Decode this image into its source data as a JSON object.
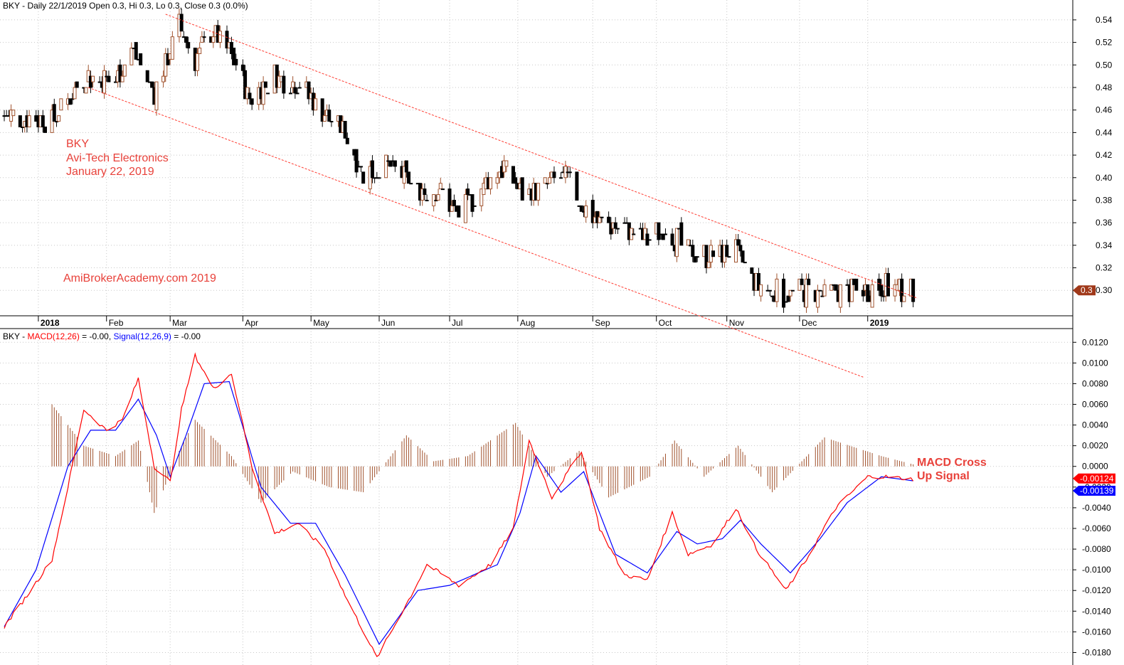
{
  "header": {
    "price": "BKY - Daily 22/1/2019 Open 0.3, Hi 0.3, Lo 0.3, Close 0.3 (0.0%)",
    "macd_prefix": "BKY - ",
    "macd_name": "MACD(12,26)",
    "macd_value": " = -0.00, ",
    "signal_name": "Signal(12,26,9)",
    "signal_value": " = -0.00"
  },
  "annotations": {
    "ticker": "BKY",
    "company": "Avi-Tech Electronics",
    "date": "January 22, 2019",
    "site": "AmiBrokerAcademy.com  2019",
    "macd_cross_line1": "MACD Cross",
    "macd_cross_line2": "Up Signal"
  },
  "colors": {
    "up_candle": "#a0522d",
    "down_candle": "#000000",
    "macd_line": "#ff0000",
    "signal_line": "#0000ff",
    "histogram": "#a0522d",
    "trendline": "#ff3b30",
    "annotation": "#e8413a",
    "grid": "#c8c8c8"
  },
  "chart_data": [
    {
      "type": "candlestick",
      "title": "BKY - Daily 22/1/2019 Open 0.3, Hi 0.3, Lo 0.3, Close 0.3 (0.0%)",
      "ylim": [
        0.285,
        0.545
      ],
      "y_ticks": [
        "0.54",
        "0.52",
        "0.50",
        "0.48",
        "0.46",
        "0.44",
        "0.42",
        "0.40",
        "0.38",
        "0.36",
        "0.34",
        "0.32",
        "0.30"
      ],
      "x_ticks": [
        {
          "label": "2018",
          "date": "2018-01-02",
          "bold": true
        },
        {
          "label": "Feb",
          "date": "2018-02-01"
        },
        {
          "label": "Mar",
          "date": "2018-03-01"
        },
        {
          "label": "Apr",
          "date": "2018-04-02"
        },
        {
          "label": "May",
          "date": "2018-05-02"
        },
        {
          "label": "Jun",
          "date": "2018-06-01"
        },
        {
          "label": "Jul",
          "date": "2018-07-02"
        },
        {
          "label": "Aug",
          "date": "2018-08-01"
        },
        {
          "label": "Sep",
          "date": "2018-09-03"
        },
        {
          "label": "Oct",
          "date": "2018-10-01"
        },
        {
          "label": "Nov",
          "date": "2018-11-01"
        },
        {
          "label": "Dec",
          "date": "2018-12-03"
        },
        {
          "label": "2019",
          "date": "2019-01-02",
          "bold": true
        }
      ],
      "last_close_label": "0.3",
      "closes": [
        {
          "date": "2017-12-18",
          "close": 0.455
        },
        {
          "date": "2018-01-08",
          "close": 0.45
        },
        {
          "date": "2018-01-22",
          "close": 0.49
        },
        {
          "date": "2018-02-05",
          "close": 0.485
        },
        {
          "date": "2018-02-12",
          "close": 0.515
        },
        {
          "date": "2018-02-22",
          "close": 0.475
        },
        {
          "date": "2018-03-05",
          "close": 0.535
        },
        {
          "date": "2018-03-12",
          "close": 0.505
        },
        {
          "date": "2018-03-20",
          "close": 0.53
        },
        {
          "date": "2018-03-29",
          "close": 0.505
        },
        {
          "date": "2018-04-05",
          "close": 0.47
        },
        {
          "date": "2018-04-16",
          "close": 0.49
        },
        {
          "date": "2018-04-26",
          "close": 0.485
        },
        {
          "date": "2018-05-08",
          "close": 0.455
        },
        {
          "date": "2018-05-17",
          "close": 0.44
        },
        {
          "date": "2018-05-25",
          "close": 0.405
        },
        {
          "date": "2018-06-05",
          "close": 0.41
        },
        {
          "date": "2018-06-18",
          "close": 0.39
        },
        {
          "date": "2018-06-28",
          "close": 0.39
        },
        {
          "date": "2018-07-06",
          "close": 0.365
        },
        {
          "date": "2018-07-16",
          "close": 0.39
        },
        {
          "date": "2018-07-26",
          "close": 0.41
        },
        {
          "date": "2018-08-03",
          "close": 0.385
        },
        {
          "date": "2018-08-15",
          "close": 0.395
        },
        {
          "date": "2018-08-22",
          "close": 0.4
        },
        {
          "date": "2018-08-30",
          "close": 0.375
        },
        {
          "date": "2018-09-06",
          "close": 0.36
        },
        {
          "date": "2018-09-17",
          "close": 0.355
        },
        {
          "date": "2018-09-27",
          "close": 0.345
        },
        {
          "date": "2018-10-05",
          "close": 0.355
        },
        {
          "date": "2018-10-15",
          "close": 0.335
        },
        {
          "date": "2018-10-25",
          "close": 0.33
        },
        {
          "date": "2018-11-05",
          "close": 0.335
        },
        {
          "date": "2018-11-14",
          "close": 0.305
        },
        {
          "date": "2018-11-26",
          "close": 0.295
        },
        {
          "date": "2018-12-06",
          "close": 0.3
        },
        {
          "date": "2018-12-14",
          "close": 0.295
        },
        {
          "date": "2018-12-21",
          "close": 0.3
        },
        {
          "date": "2019-01-02",
          "close": 0.3
        },
        {
          "date": "2019-01-08",
          "close": 0.305
        },
        {
          "date": "2019-01-15",
          "close": 0.3
        },
        {
          "date": "2019-01-22",
          "close": 0.3
        }
      ],
      "trendlines": [
        {
          "name": "upper",
          "from": {
            "date": "2018-02-27",
            "value": 0.545
          },
          "to": {
            "date": "2019-01-24",
            "value": 0.293
          }
        },
        {
          "name": "lower",
          "from": {
            "date": "2018-01-24",
            "value": 0.48
          },
          "to": {
            "date": "2018-12-31",
            "value": 0.223
          }
        }
      ]
    },
    {
      "type": "line",
      "title": "BKY - MACD(12,26) = -0.00, Signal(12,26,9) = -0.00",
      "ylim": [
        -0.019,
        0.0125
      ],
      "y_ticks": [
        "0.0120",
        "0.0100",
        "0.0080",
        "0.0060",
        "0.0040",
        "0.0020",
        "0.0000",
        "-0.0020",
        "-0.0040",
        "-0.0060",
        "-0.0080",
        "-0.0100",
        "-0.0120",
        "-0.0140",
        "-0.0160",
        "-0.0180"
      ],
      "value_labels": {
        "macd": "-0.00124",
        "signal": "-0.00139"
      },
      "series": [
        {
          "name": "MACD(12,26)",
          "values": [
            {
              "date": "2017-12-18",
              "value": -0.0155
            },
            {
              "date": "2017-12-28",
              "value": -0.0125
            },
            {
              "date": "2018-01-08",
              "value": -0.009
            },
            {
              "date": "2018-01-15",
              "value": -0.002
            },
            {
              "date": "2018-01-22",
              "value": 0.0055
            },
            {
              "date": "2018-02-01",
              "value": 0.0035
            },
            {
              "date": "2018-02-08",
              "value": 0.0045
            },
            {
              "date": "2018-02-15",
              "value": 0.0085
            },
            {
              "date": "2018-02-22",
              "value": 0.0
            },
            {
              "date": "2018-03-01",
              "value": -0.0015
            },
            {
              "date": "2018-03-06",
              "value": 0.0055
            },
            {
              "date": "2018-03-12",
              "value": 0.0107
            },
            {
              "date": "2018-03-20",
              "value": 0.0075
            },
            {
              "date": "2018-03-28",
              "value": 0.009
            },
            {
              "date": "2018-04-06",
              "value": 0.0
            },
            {
              "date": "2018-04-16",
              "value": -0.0065
            },
            {
              "date": "2018-04-26",
              "value": -0.0055
            },
            {
              "date": "2018-05-08",
              "value": -0.008
            },
            {
              "date": "2018-05-17",
              "value": -0.0125
            },
            {
              "date": "2018-05-31",
              "value": -0.0185
            },
            {
              "date": "2018-06-15",
              "value": -0.0125
            },
            {
              "date": "2018-06-22",
              "value": -0.0095
            },
            {
              "date": "2018-07-06",
              "value": -0.0115
            },
            {
              "date": "2018-07-20",
              "value": -0.0095
            },
            {
              "date": "2018-07-30",
              "value": -0.006
            },
            {
              "date": "2018-08-06",
              "value": 0.0025
            },
            {
              "date": "2018-08-16",
              "value": -0.003
            },
            {
              "date": "2018-08-29",
              "value": 0.0015
            },
            {
              "date": "2018-09-06",
              "value": -0.006
            },
            {
              "date": "2018-09-17",
              "value": -0.0105
            },
            {
              "date": "2018-09-27",
              "value": -0.011
            },
            {
              "date": "2018-10-08",
              "value": -0.0045
            },
            {
              "date": "2018-10-15",
              "value": -0.0085
            },
            {
              "date": "2018-10-26",
              "value": -0.0075
            },
            {
              "date": "2018-11-05",
              "value": -0.004
            },
            {
              "date": "2018-11-14",
              "value": -0.008
            },
            {
              "date": "2018-11-27",
              "value": -0.012
            },
            {
              "date": "2018-12-06",
              "value": -0.009
            },
            {
              "date": "2018-12-19",
              "value": -0.004
            },
            {
              "date": "2019-01-02",
              "value": -0.001
            },
            {
              "date": "2019-01-10",
              "value": -0.001
            },
            {
              "date": "2019-01-22",
              "value": -0.00124
            }
          ]
        },
        {
          "name": "Signal(12,26,9)",
          "values": [
            {
              "date": "2017-12-18",
              "value": -0.0155
            },
            {
              "date": "2018-01-01",
              "value": -0.01
            },
            {
              "date": "2018-01-15",
              "value": 0.0
            },
            {
              "date": "2018-01-25",
              "value": 0.0035
            },
            {
              "date": "2018-02-05",
              "value": 0.0035
            },
            {
              "date": "2018-02-15",
              "value": 0.0065
            },
            {
              "date": "2018-02-23",
              "value": 0.003
            },
            {
              "date": "2018-03-01",
              "value": -0.001
            },
            {
              "date": "2018-03-08",
              "value": 0.003
            },
            {
              "date": "2018-03-16",
              "value": 0.008
            },
            {
              "date": "2018-03-27",
              "value": 0.0082
            },
            {
              "date": "2018-04-10",
              "value": -0.002
            },
            {
              "date": "2018-04-23",
              "value": -0.0055
            },
            {
              "date": "2018-05-04",
              "value": -0.0055
            },
            {
              "date": "2018-05-17",
              "value": -0.0105
            },
            {
              "date": "2018-06-01",
              "value": -0.0172
            },
            {
              "date": "2018-06-18",
              "value": -0.012
            },
            {
              "date": "2018-07-02",
              "value": -0.0115
            },
            {
              "date": "2018-07-23",
              "value": -0.0095
            },
            {
              "date": "2018-08-02",
              "value": -0.0045
            },
            {
              "date": "2018-08-09",
              "value": 0.001
            },
            {
              "date": "2018-08-20",
              "value": -0.0025
            },
            {
              "date": "2018-08-30",
              "value": -0.0005
            },
            {
              "date": "2018-09-13",
              "value": -0.0085
            },
            {
              "date": "2018-09-27",
              "value": -0.0103
            },
            {
              "date": "2018-10-10",
              "value": -0.0063
            },
            {
              "date": "2018-10-19",
              "value": -0.0075
            },
            {
              "date": "2018-10-30",
              "value": -0.007
            },
            {
              "date": "2018-11-07",
              "value": -0.0052
            },
            {
              "date": "2018-11-16",
              "value": -0.0075
            },
            {
              "date": "2018-11-29",
              "value": -0.0103
            },
            {
              "date": "2018-12-12",
              "value": -0.007
            },
            {
              "date": "2018-12-24",
              "value": -0.0035
            },
            {
              "date": "2019-01-08",
              "value": -0.001
            },
            {
              "date": "2019-01-22",
              "value": -0.00139
            }
          ]
        },
        {
          "name": "Histogram",
          "type": "bar",
          "values": [
            {
              "date": "2018-01-08",
              "value": 0.006
            },
            {
              "date": "2018-01-22",
              "value": 0.002
            },
            {
              "date": "2018-02-05",
              "value": 0.001
            },
            {
              "date": "2018-02-15",
              "value": 0.0025
            },
            {
              "date": "2018-02-22",
              "value": -0.0045
            },
            {
              "date": "2018-03-05",
              "value": 0.0015
            },
            {
              "date": "2018-03-12",
              "value": 0.0045
            },
            {
              "date": "2018-03-28",
              "value": 0.001
            },
            {
              "date": "2018-04-10",
              "value": -0.0035
            },
            {
              "date": "2018-04-24",
              "value": -0.0005
            },
            {
              "date": "2018-05-10",
              "value": -0.002
            },
            {
              "date": "2018-05-25",
              "value": -0.0025
            },
            {
              "date": "2018-06-13",
              "value": 0.003
            },
            {
              "date": "2018-06-25",
              "value": 0.0005
            },
            {
              "date": "2018-07-10",
              "value": 0.001
            },
            {
              "date": "2018-07-31",
              "value": 0.0042
            },
            {
              "date": "2018-08-14",
              "value": -0.001
            },
            {
              "date": "2018-08-28",
              "value": 0.0015
            },
            {
              "date": "2018-09-10",
              "value": -0.003
            },
            {
              "date": "2018-09-28",
              "value": -0.001
            },
            {
              "date": "2018-10-09",
              "value": 0.0025
            },
            {
              "date": "2018-10-22",
              "value": -0.001
            },
            {
              "date": "2018-11-06",
              "value": 0.002
            },
            {
              "date": "2018-11-21",
              "value": -0.0025
            },
            {
              "date": "2018-12-14",
              "value": 0.0028
            },
            {
              "date": "2019-01-08",
              "value": 0.001
            },
            {
              "date": "2019-01-22",
              "value": 0.0002
            }
          ]
        }
      ]
    }
  ]
}
